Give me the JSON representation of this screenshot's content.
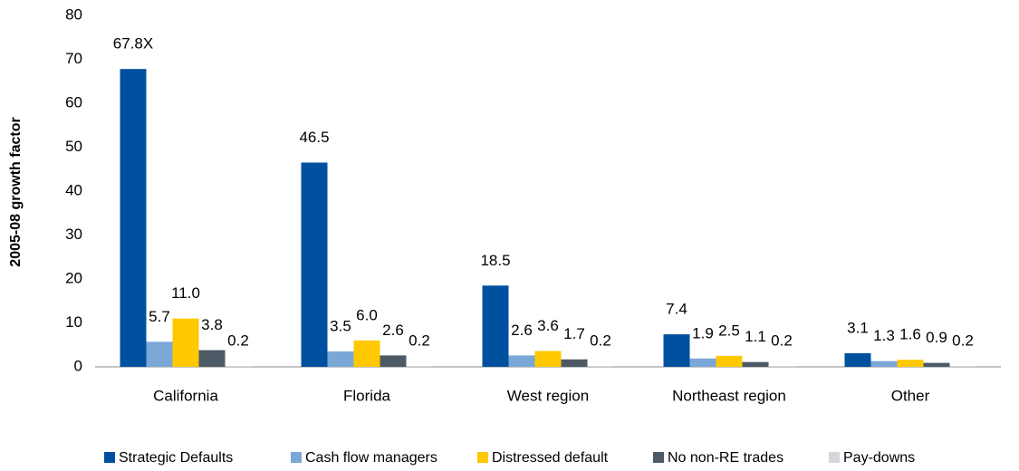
{
  "chart_data": {
    "type": "bar",
    "y_label": "2005-08 growth factor",
    "categories": [
      "California",
      "Florida",
      "West region",
      "Northeast region",
      "Other"
    ],
    "series": [
      {
        "name": "Strategic Defaults",
        "color": "#0050a0",
        "values": [
          67.8,
          46.5,
          18.5,
          7.4,
          3.1
        ],
        "value_labels": [
          "67.8X",
          "46.5",
          "18.5",
          "7.4",
          "3.1"
        ]
      },
      {
        "name": "Cash flow managers",
        "color": "#7ba7d7",
        "values": [
          5.7,
          3.5,
          2.6,
          1.9,
          1.3
        ],
        "value_labels": [
          "5.7",
          "3.5",
          "2.6",
          "1.9",
          "1.3"
        ]
      },
      {
        "name": "Distressed default",
        "color": "#ffc800",
        "values": [
          11.0,
          6.0,
          3.6,
          2.5,
          1.6
        ],
        "value_labels": [
          "11.0",
          "6.0",
          "3.6",
          "2.5",
          "1.6"
        ]
      },
      {
        "name": "No non-RE trades",
        "color": "#4d5a66",
        "values": [
          3.8,
          2.6,
          1.7,
          1.1,
          0.9
        ],
        "value_labels": [
          "3.8",
          "2.6",
          "1.7",
          "1.1",
          "0.9"
        ]
      },
      {
        "name": "Pay-downs",
        "color": "#d3d6da",
        "values": [
          0.2,
          0.2,
          0.2,
          0.2,
          0.2
        ],
        "value_labels": [
          "0.2",
          "0.2",
          "0.2",
          "0.2",
          "0.2"
        ]
      }
    ],
    "ylim": [
      0,
      80
    ],
    "yticks": [
      0,
      10,
      20,
      30,
      40,
      50,
      60,
      70,
      80
    ],
    "grid": false,
    "legend": "bottom"
  }
}
